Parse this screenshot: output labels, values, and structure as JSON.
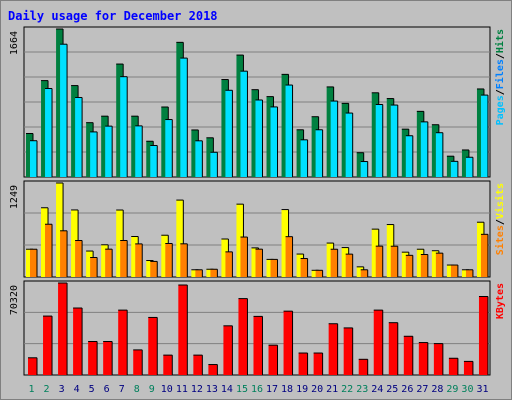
{
  "title": "Daily usage for December 2018",
  "colors": {
    "background": "#C0C0C0",
    "title": "#0000FF",
    "hits_fill": "#008040",
    "hits_label": "#008040",
    "files_fill": "#00E0FF",
    "files_label": "#0080FF",
    "pages_fill": "#00E0FF",
    "pages_label": "#00C0FF",
    "visits_fill": "#FFFF00",
    "visits_label": "#FFFF00",
    "sites_fill": "#FF8000",
    "sites_label": "#FF8000",
    "kbytes_fill": "#FF0000",
    "kbytes_label": "#FF0000",
    "weekday_day": "#000080",
    "weekend_day": "#00805C"
  },
  "chart_data": [
    {
      "type": "bar",
      "panel": "hits-files-pages",
      "ymax_label": "1664",
      "ylim": [
        0,
        1664
      ],
      "legend": [
        "Pages",
        "/",
        "Files",
        "/",
        "Hits"
      ],
      "categories": [
        "1",
        "2",
        "3",
        "4",
        "5",
        "6",
        "7",
        "8",
        "9",
        "10",
        "11",
        "12",
        "13",
        "14",
        "15",
        "16",
        "17",
        "18",
        "19",
        "20",
        "21",
        "22",
        "23",
        "24",
        "25",
        "26",
        "27",
        "28",
        "29",
        "30",
        "31"
      ],
      "series": [
        {
          "name": "Hits",
          "values": [
            489,
            1084,
            1664,
            1028,
            611,
            684,
            1270,
            684,
            402,
            787,
            1514,
            529,
            441,
            1096,
            1371,
            982,
            904,
            1154,
            531,
            678,
            1013,
            828,
            273,
            947,
            882,
            538,
            738,
            588,
            234,
            304,
            990
          ]
        },
        {
          "name": "Files",
          "values": [
            408,
            995,
            1493,
            894,
            507,
            572,
            1128,
            575,
            354,
            646,
            1337,
            407,
            278,
            975,
            1190,
            866,
            788,
            1034,
            418,
            531,
            854,
            719,
            174,
            815,
            809,
            464,
            620,
            498,
            176,
            222,
            921
          ]
        }
      ]
    },
    {
      "type": "bar",
      "panel": "visits-sites",
      "ymax_label": "1249",
      "ylim": [
        0,
        1249
      ],
      "legend": [
        "Sites",
        "/",
        "Visits"
      ],
      "categories": [
        "1",
        "2",
        "3",
        "4",
        "5",
        "6",
        "7",
        "8",
        "9",
        "10",
        "11",
        "12",
        "13",
        "14",
        "15",
        "16",
        "17",
        "18",
        "19",
        "20",
        "21",
        "22",
        "23",
        "24",
        "25",
        "26",
        "27",
        "28",
        "29",
        "30",
        "31"
      ],
      "series": [
        {
          "name": "Visits",
          "values": [
            369,
            920,
            1249,
            891,
            345,
            428,
            890,
            538,
            219,
            555,
            1022,
            96,
            103,
            505,
            968,
            387,
            234,
            896,
            305,
            89,
            451,
            391,
            135,
            636,
            697,
            330,
            369,
            349,
            159,
            96,
            728
          ]
        },
        {
          "name": "Sites",
          "values": [
            369,
            701,
            614,
            485,
            259,
            370,
            485,
            440,
            207,
            445,
            441,
            96,
            103,
            334,
            531,
            370,
            234,
            536,
            246,
            89,
            369,
            304,
            96,
            410,
            409,
            288,
            299,
            317,
            159,
            96,
            567
          ]
        }
      ]
    },
    {
      "type": "bar",
      "panel": "kbytes",
      "ymax_label": "70320",
      "ylim": [
        0,
        70320
      ],
      "legend": [
        "KBytes"
      ],
      "categories": [
        "1",
        "2",
        "3",
        "4",
        "5",
        "6",
        "7",
        "8",
        "9",
        "10",
        "11",
        "12",
        "13",
        "14",
        "15",
        "16",
        "17",
        "18",
        "19",
        "20",
        "21",
        "22",
        "23",
        "24",
        "25",
        "26",
        "27",
        "28",
        "29",
        "30",
        "31"
      ],
      "series": [
        {
          "name": "KBytes",
          "values": [
            13160,
            45040,
            70320,
            51200,
            25600,
            25600,
            49600,
            19200,
            44000,
            15200,
            68800,
            15200,
            8000,
            37600,
            58400,
            44800,
            22800,
            48800,
            16800,
            16800,
            39200,
            36000,
            12000,
            49600,
            40000,
            29600,
            24800,
            24000,
            12800,
            10400,
            60000
          ]
        }
      ]
    }
  ]
}
